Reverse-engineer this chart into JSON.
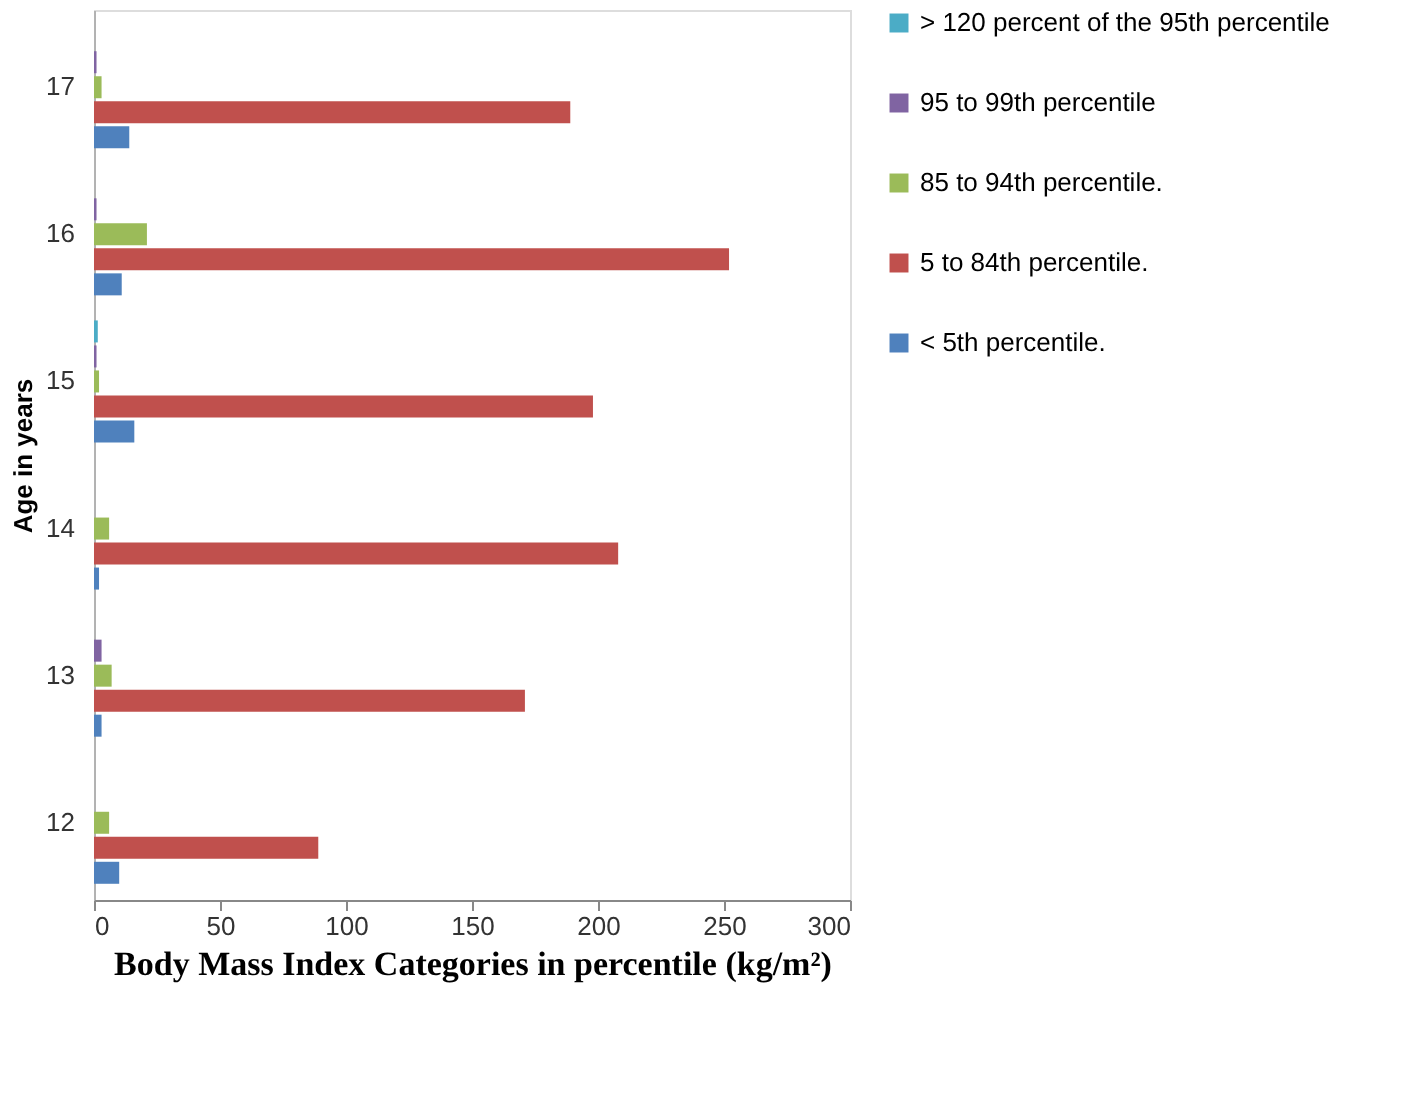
{
  "chart_data": {
    "type": "bar",
    "orientation": "horizontal",
    "xlabel": "Body Mass Index Categories in percentile (kg/m²)",
    "ylabel": "Age in years",
    "categories": [
      "17",
      "16",
      "15",
      "14",
      "13",
      "12"
    ],
    "series": [
      {
        "name": "> 120 percent of the 95th percentile",
        "color": "#4bacc6",
        "values": [
          0,
          0,
          1.5,
          0,
          0,
          0
        ]
      },
      {
        "name": "95 to 99th percentile",
        "color": "#8064a2",
        "values": [
          1,
          1,
          1,
          0,
          3,
          0
        ]
      },
      {
        "name": "85 to 94th percentile.",
        "color": "#9bbb59",
        "values": [
          3,
          21,
          2,
          6,
          7,
          6
        ]
      },
      {
        "name": "5 to 84th percentile.",
        "color": "#c0504d",
        "values": [
          189,
          252,
          198,
          208,
          171,
          89
        ]
      },
      {
        "name": "< 5th percentile.",
        "color": "#4f81bd",
        "values": [
          14,
          11,
          16,
          2,
          3,
          10
        ]
      }
    ],
    "xlim": [
      0,
      300
    ],
    "xticks": [
      0,
      50,
      100,
      150,
      200,
      250,
      300
    ],
    "grid": false,
    "legend": "right"
  }
}
